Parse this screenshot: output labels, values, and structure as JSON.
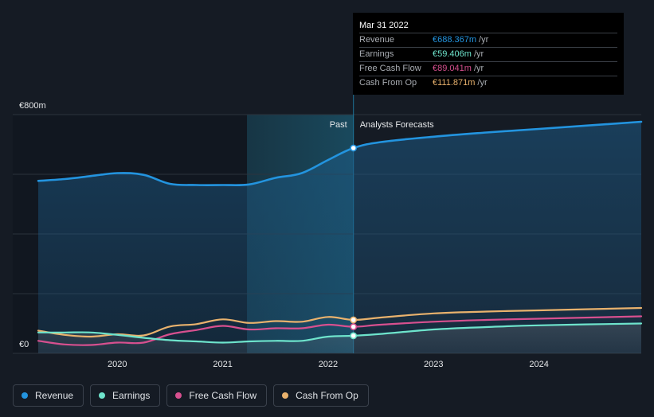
{
  "chart_data": {
    "type": "line",
    "y_unit_labels": [
      "€800m",
      "€0"
    ],
    "ylim": [
      0,
      800
    ],
    "xlim": [
      2019.25,
      2024.97
    ],
    "x_ticks": [
      {
        "label": "2020",
        "value": 2020
      },
      {
        "label": "2021",
        "value": 2021
      },
      {
        "label": "2022",
        "value": 2022
      },
      {
        "label": "2023",
        "value": 2023
      },
      {
        "label": "2024",
        "value": 2024
      }
    ],
    "divider": {
      "x": 2022.24,
      "past_label": "Past",
      "forecast_label": "Analysts Forecasts"
    },
    "highlight_start": 2021.23,
    "series": [
      {
        "name": "Revenue",
        "color": "#2394df",
        "values": [
          [
            2019.25,
            578
          ],
          [
            2019.5,
            584
          ],
          [
            2019.75,
            594
          ],
          [
            2020.0,
            604
          ],
          [
            2020.25,
            598
          ],
          [
            2020.5,
            568
          ],
          [
            2020.75,
            564
          ],
          [
            2021.0,
            564
          ],
          [
            2021.25,
            566
          ],
          [
            2021.5,
            588
          ],
          [
            2021.75,
            604
          ],
          [
            2022.0,
            648
          ],
          [
            2022.24,
            688
          ],
          [
            2022.5,
            708
          ],
          [
            2023.0,
            726
          ],
          [
            2023.5,
            740
          ],
          [
            2024.0,
            752
          ],
          [
            2024.97,
            776
          ]
        ]
      },
      {
        "name": "Earnings",
        "color": "#6ee4cc",
        "values": [
          [
            2019.25,
            70
          ],
          [
            2019.5,
            70
          ],
          [
            2019.75,
            70
          ],
          [
            2020.0,
            62
          ],
          [
            2020.25,
            52
          ],
          [
            2020.5,
            44
          ],
          [
            2020.75,
            40
          ],
          [
            2021.0,
            36
          ],
          [
            2021.25,
            40
          ],
          [
            2021.5,
            42
          ],
          [
            2021.75,
            42
          ],
          [
            2022.0,
            56
          ],
          [
            2022.24,
            59
          ],
          [
            2022.5,
            65
          ],
          [
            2023.0,
            80
          ],
          [
            2023.5,
            88
          ],
          [
            2024.0,
            94
          ],
          [
            2024.97,
            100
          ]
        ]
      },
      {
        "name": "Free Cash Flow",
        "color": "#d7508f",
        "values": [
          [
            2019.25,
            42
          ],
          [
            2019.5,
            30
          ],
          [
            2019.75,
            28
          ],
          [
            2020.0,
            36
          ],
          [
            2020.25,
            36
          ],
          [
            2020.5,
            64
          ],
          [
            2020.75,
            78
          ],
          [
            2021.0,
            92
          ],
          [
            2021.25,
            80
          ],
          [
            2021.5,
            84
          ],
          [
            2021.75,
            84
          ],
          [
            2022.0,
            96
          ],
          [
            2022.24,
            89
          ],
          [
            2022.5,
            96
          ],
          [
            2023.0,
            106
          ],
          [
            2023.5,
            112
          ],
          [
            2024.0,
            116
          ],
          [
            2024.97,
            124
          ]
        ]
      },
      {
        "name": "Cash From Op",
        "color": "#e9b26d",
        "values": [
          [
            2019.25,
            76
          ],
          [
            2019.5,
            62
          ],
          [
            2019.75,
            56
          ],
          [
            2020.0,
            64
          ],
          [
            2020.25,
            60
          ],
          [
            2020.5,
            90
          ],
          [
            2020.75,
            98
          ],
          [
            2021.0,
            114
          ],
          [
            2021.25,
            102
          ],
          [
            2021.5,
            108
          ],
          [
            2021.75,
            106
          ],
          [
            2022.0,
            122
          ],
          [
            2022.24,
            112
          ],
          [
            2022.5,
            120
          ],
          [
            2023.0,
            134
          ],
          [
            2023.5,
            140
          ],
          [
            2024.0,
            144
          ],
          [
            2024.97,
            152
          ]
        ]
      }
    ]
  },
  "tooltip": {
    "date": "Mar 31 2022",
    "rows": [
      {
        "label": "Revenue",
        "value": "€688.367m",
        "unit": "/yr",
        "color": "#2394df"
      },
      {
        "label": "Earnings",
        "value": "€59.406m",
        "unit": "/yr",
        "color": "#6ee4cc"
      },
      {
        "label": "Free Cash Flow",
        "value": "€89.041m",
        "unit": "/yr",
        "color": "#d7508f"
      },
      {
        "label": "Cash From Op",
        "value": "€111.871m",
        "unit": "/yr",
        "color": "#e9b26d"
      }
    ]
  },
  "legend": [
    {
      "label": "Revenue",
      "color": "#2394df"
    },
    {
      "label": "Earnings",
      "color": "#6ee4cc"
    },
    {
      "label": "Free Cash Flow",
      "color": "#d7508f"
    },
    {
      "label": "Cash From Op",
      "color": "#e9b26d"
    }
  ]
}
